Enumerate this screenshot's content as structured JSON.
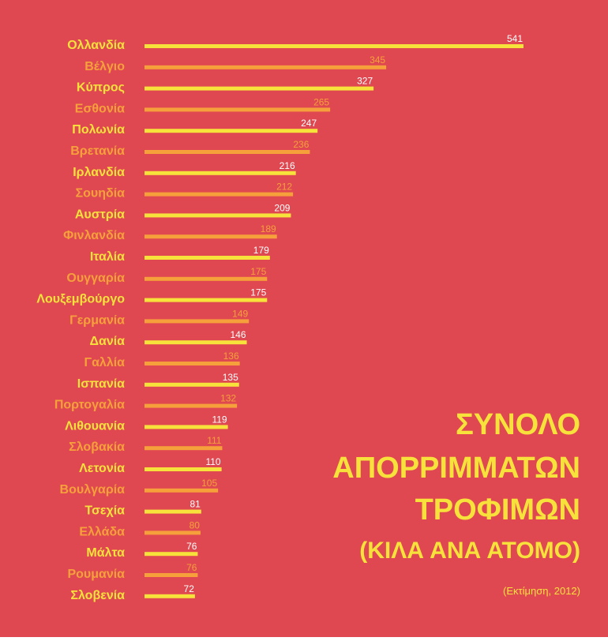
{
  "chart_data": {
    "type": "bar",
    "orientation": "horizontal",
    "title_lines": [
      "ΣΥΝΟΛΟ",
      "ΑΠΟΡΡΙΜΜΑΤΩΝ",
      "ΤΡΟΦΙΜΩΝ"
    ],
    "subtitle": "(ΚΙΛΑ ΑΝΑ ΑΤΟΜΟ)",
    "note": "(Εκτίμηση, 2012)",
    "categories": [
      "Ολλανδία",
      "Βέλγιο",
      "Κύπρος",
      "Εσθονία",
      "Πολωνία",
      "Βρετανία",
      "Ιρλανδία",
      "Σουηδία",
      "Αυστρία",
      "Φινλανδία",
      "Ιταλία",
      "Ουγγαρία",
      "Λουξεμβούργο",
      "Γερμανία",
      "Δανία",
      "Γαλλία",
      "Ισπανία",
      "Πορτογαλία",
      "Λιθουανία",
      "Σλοβακία",
      "Λετονία",
      "Βουλγαρία",
      "Τσεχία",
      "Ελλάδα",
      "Μάλτα",
      "Ρουμανία",
      "Σλοβενία"
    ],
    "values": [
      541,
      345,
      327,
      265,
      247,
      236,
      216,
      212,
      209,
      189,
      179,
      175,
      175,
      149,
      146,
      136,
      135,
      132,
      119,
      111,
      110,
      105,
      81,
      80,
      76,
      76,
      72
    ],
    "colors": [
      "#f7e23c",
      "#f5a03b"
    ],
    "value_label_colors": [
      "#ffffff",
      "#f5a03b"
    ],
    "background": "#df4850"
  }
}
